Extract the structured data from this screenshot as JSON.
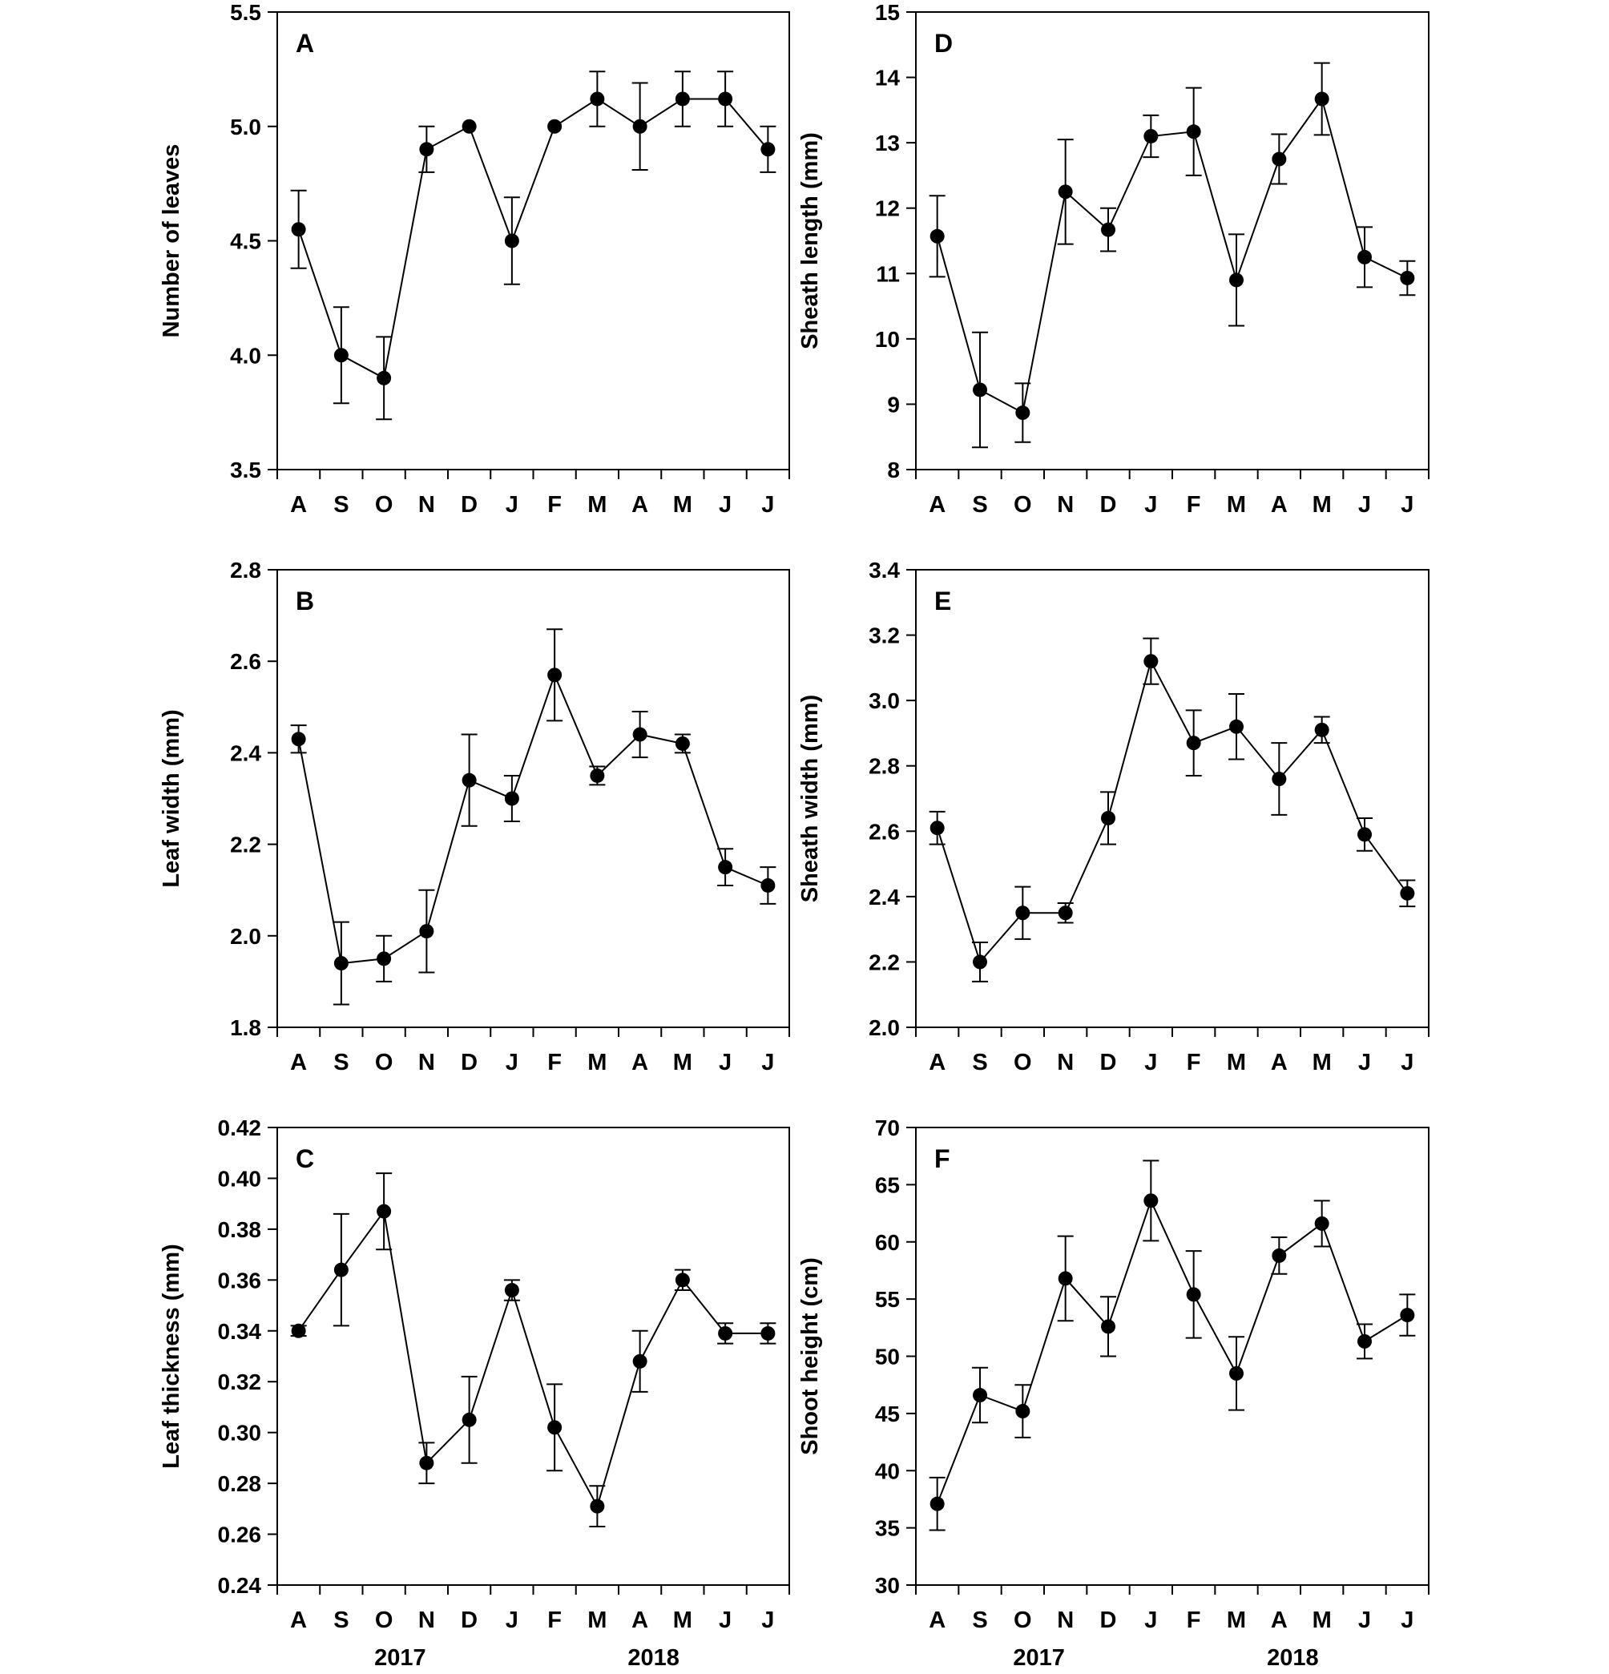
{
  "months": [
    "A",
    "S",
    "O",
    "N",
    "D",
    "J",
    "F",
    "M",
    "A",
    "M",
    "J",
    "J"
  ],
  "years": [
    "2017",
    "2018"
  ],
  "chart_data": [
    {
      "id": "A",
      "type": "line",
      "panel_label": "A",
      "ylabel": "Number of leaves",
      "ylim": [
        3.5,
        5.5
      ],
      "yticks": [
        "3.5",
        "4.0",
        "4.5",
        "5.0",
        "5.5"
      ],
      "values": [
        4.55,
        4.0,
        3.9,
        4.9,
        5.0,
        4.5,
        5.0,
        5.12,
        5.0,
        5.12,
        5.12,
        4.9
      ],
      "errors": [
        0.17,
        0.21,
        0.18,
        0.1,
        0.0,
        0.19,
        0.0,
        0.12,
        0.19,
        0.12,
        0.12,
        0.1
      ],
      "show_years": false
    },
    {
      "id": "D",
      "type": "line",
      "panel_label": "D",
      "ylabel": "Sheath length (mm)",
      "ylim": [
        8,
        15
      ],
      "yticks": [
        "8",
        "9",
        "10",
        "11",
        "12",
        "13",
        "14",
        "15"
      ],
      "values": [
        11.57,
        9.22,
        8.87,
        12.25,
        11.67,
        13.1,
        13.17,
        10.9,
        12.75,
        13.67,
        11.25,
        10.93
      ],
      "errors": [
        0.62,
        0.88,
        0.45,
        0.8,
        0.33,
        0.32,
        0.67,
        0.7,
        0.38,
        0.55,
        0.46,
        0.26
      ],
      "show_years": false
    },
    {
      "id": "B",
      "type": "line",
      "panel_label": "B",
      "ylabel": "Leaf width (mm)",
      "ylim": [
        1.8,
        2.8
      ],
      "yticks": [
        "1.8",
        "2.0",
        "2.2",
        "2.4",
        "2.6",
        "2.8"
      ],
      "values": [
        2.43,
        1.94,
        1.95,
        2.01,
        2.34,
        2.3,
        2.57,
        2.35,
        2.44,
        2.42,
        2.15,
        2.11
      ],
      "errors": [
        0.03,
        0.09,
        0.05,
        0.09,
        0.1,
        0.05,
        0.1,
        0.02,
        0.05,
        0.02,
        0.04,
        0.04
      ],
      "show_years": false
    },
    {
      "id": "E",
      "type": "line",
      "panel_label": "E",
      "ylabel": "Sheath width (mm)",
      "ylim": [
        2.0,
        3.4
      ],
      "yticks": [
        "2.0",
        "2.2",
        "2.4",
        "2.6",
        "2.8",
        "3.0",
        "3.2",
        "3.4"
      ],
      "values": [
        2.61,
        2.2,
        2.35,
        2.35,
        2.64,
        3.12,
        2.87,
        2.92,
        2.76,
        2.91,
        2.59,
        2.41
      ],
      "errors": [
        0.05,
        0.06,
        0.08,
        0.03,
        0.08,
        0.07,
        0.1,
        0.1,
        0.11,
        0.04,
        0.05,
        0.04
      ],
      "show_years": false
    },
    {
      "id": "C",
      "type": "line",
      "panel_label": "C",
      "ylabel": "Leaf thickness (mm)",
      "ylim": [
        0.24,
        0.42
      ],
      "yticks": [
        "0.24",
        "0.26",
        "0.28",
        "0.30",
        "0.32",
        "0.34",
        "0.36",
        "0.38",
        "0.40",
        "0.42"
      ],
      "values": [
        0.34,
        0.364,
        0.387,
        0.288,
        0.305,
        0.356,
        0.302,
        0.271,
        0.328,
        0.36,
        0.339,
        0.339
      ],
      "errors": [
        0.002,
        0.022,
        0.015,
        0.008,
        0.017,
        0.004,
        0.017,
        0.008,
        0.012,
        0.004,
        0.004,
        0.004
      ],
      "show_years": true
    },
    {
      "id": "F",
      "type": "line",
      "panel_label": "F",
      "ylabel": "Shoot height (cm)",
      "ylim": [
        30,
        70
      ],
      "yticks": [
        "30",
        "35",
        "40",
        "45",
        "50",
        "55",
        "60",
        "65",
        "70"
      ],
      "values": [
        37.1,
        46.6,
        45.2,
        56.8,
        52.6,
        63.6,
        55.4,
        48.5,
        58.8,
        61.6,
        51.3,
        53.6
      ],
      "errors": [
        2.3,
        2.4,
        2.3,
        3.7,
        2.6,
        3.5,
        3.8,
        3.2,
        1.6,
        2.0,
        1.5,
        1.8
      ],
      "show_years": true
    }
  ]
}
